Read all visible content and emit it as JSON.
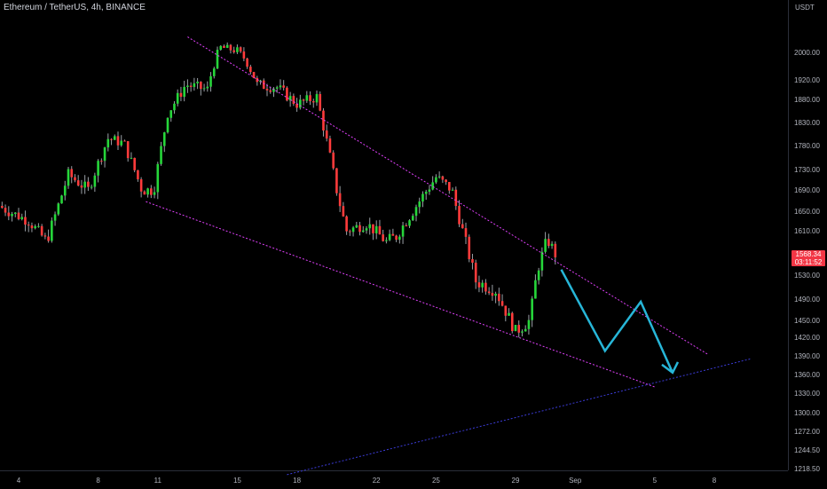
{
  "chart_data": {
    "type": "candlestick",
    "title": "Ethereum / TetherUS, 4h, BINANCE",
    "currency": "USDT",
    "last_price": "1568.34",
    "countdown": "03:11:52",
    "ylim": [
      1210,
      2065
    ],
    "y_ticks": [
      "2000.00",
      "1920.00",
      "1880.00",
      "1830.00",
      "1780.00",
      "1730.00",
      "1690.00",
      "1650.00",
      "1610.00",
      "1530.00",
      "1490.00",
      "1450.00",
      "1420.00",
      "1390.00",
      "1360.00",
      "1330.00",
      "1300.00",
      "1272.00",
      "1244.50",
      "1218.50"
    ],
    "x_ticks": [
      {
        "label": "4",
        "day": 4
      },
      {
        "label": "8",
        "day": 8
      },
      {
        "label": "11",
        "day": 11
      },
      {
        "label": "15",
        "day": 15
      },
      {
        "label": "18",
        "day": 18
      },
      {
        "label": "22",
        "day": 22
      },
      {
        "label": "25",
        "day": 25
      },
      {
        "label": "29",
        "day": 29
      },
      {
        "label": "Sep",
        "day": 32
      },
      {
        "label": "5",
        "day": 36
      },
      {
        "label": "8",
        "day": 39
      }
    ],
    "anchors": [
      {
        "day": 3.0,
        "price": 1660
      },
      {
        "day": 4.5,
        "price": 1630
      },
      {
        "day": 5.4,
        "price": 1590
      },
      {
        "day": 6.5,
        "price": 1720
      },
      {
        "day": 7.5,
        "price": 1690
      },
      {
        "day": 8.5,
        "price": 1795
      },
      {
        "day": 9.3,
        "price": 1785
      },
      {
        "day": 10.2,
        "price": 1690
      },
      {
        "day": 10.8,
        "price": 1690
      },
      {
        "day": 11.5,
        "price": 1850
      },
      {
        "day": 12.4,
        "price": 1910
      },
      {
        "day": 13.5,
        "price": 1900
      },
      {
        "day": 14.1,
        "price": 2015
      },
      {
        "day": 15.0,
        "price": 2005
      },
      {
        "day": 15.4,
        "price": 1980
      },
      {
        "day": 16.0,
        "price": 1910
      },
      {
        "day": 17.0,
        "price": 1905
      },
      {
        "day": 18.0,
        "price": 1870
      },
      {
        "day": 19.0,
        "price": 1885
      },
      {
        "day": 19.6,
        "price": 1770
      },
      {
        "day": 20.0,
        "price": 1690
      },
      {
        "day": 20.5,
        "price": 1610
      },
      {
        "day": 21.5,
        "price": 1625
      },
      {
        "day": 22.5,
        "price": 1590
      },
      {
        "day": 23.0,
        "price": 1600
      },
      {
        "day": 24.0,
        "price": 1660
      },
      {
        "day": 25.0,
        "price": 1715
      },
      {
        "day": 25.8,
        "price": 1690
      },
      {
        "day": 26.3,
        "price": 1615
      },
      {
        "day": 27.0,
        "price": 1520
      },
      {
        "day": 28.0,
        "price": 1505
      },
      {
        "day": 29.0,
        "price": 1430
      },
      {
        "day": 29.7,
        "price": 1450
      },
      {
        "day": 30.1,
        "price": 1540
      },
      {
        "day": 30.6,
        "price": 1595
      },
      {
        "day": 31.0,
        "price": 1568
      }
    ],
    "trendlines": [
      {
        "name": "upper-trendline",
        "from": {
          "day": 12.5,
          "price": 2045
        },
        "to": {
          "day": 38.7,
          "price": 1392
        },
        "color": "#e040fb"
      },
      {
        "name": "lower-trendline",
        "from": {
          "day": 10.4,
          "price": 1668
        },
        "to": {
          "day": 36.0,
          "price": 1340
        },
        "color": "#e040fb"
      },
      {
        "name": "support-trendline",
        "from": {
          "day": 17.5,
          "price": 1210
        },
        "to": {
          "day": 40.8,
          "price": 1385
        },
        "color": "#3b3bd6"
      }
    ],
    "projection": {
      "color": "#27b6d8",
      "points": [
        {
          "day": 31.3,
          "price": 1540
        },
        {
          "day": 33.5,
          "price": 1398
        },
        {
          "day": 35.3,
          "price": 1485
        },
        {
          "day": 36.9,
          "price": 1363
        }
      ]
    },
    "colors": {
      "up": "#26d63a",
      "down": "#ff3b3b",
      "wick": "#9aa0a6",
      "background": "#000000"
    },
    "grid": false
  }
}
